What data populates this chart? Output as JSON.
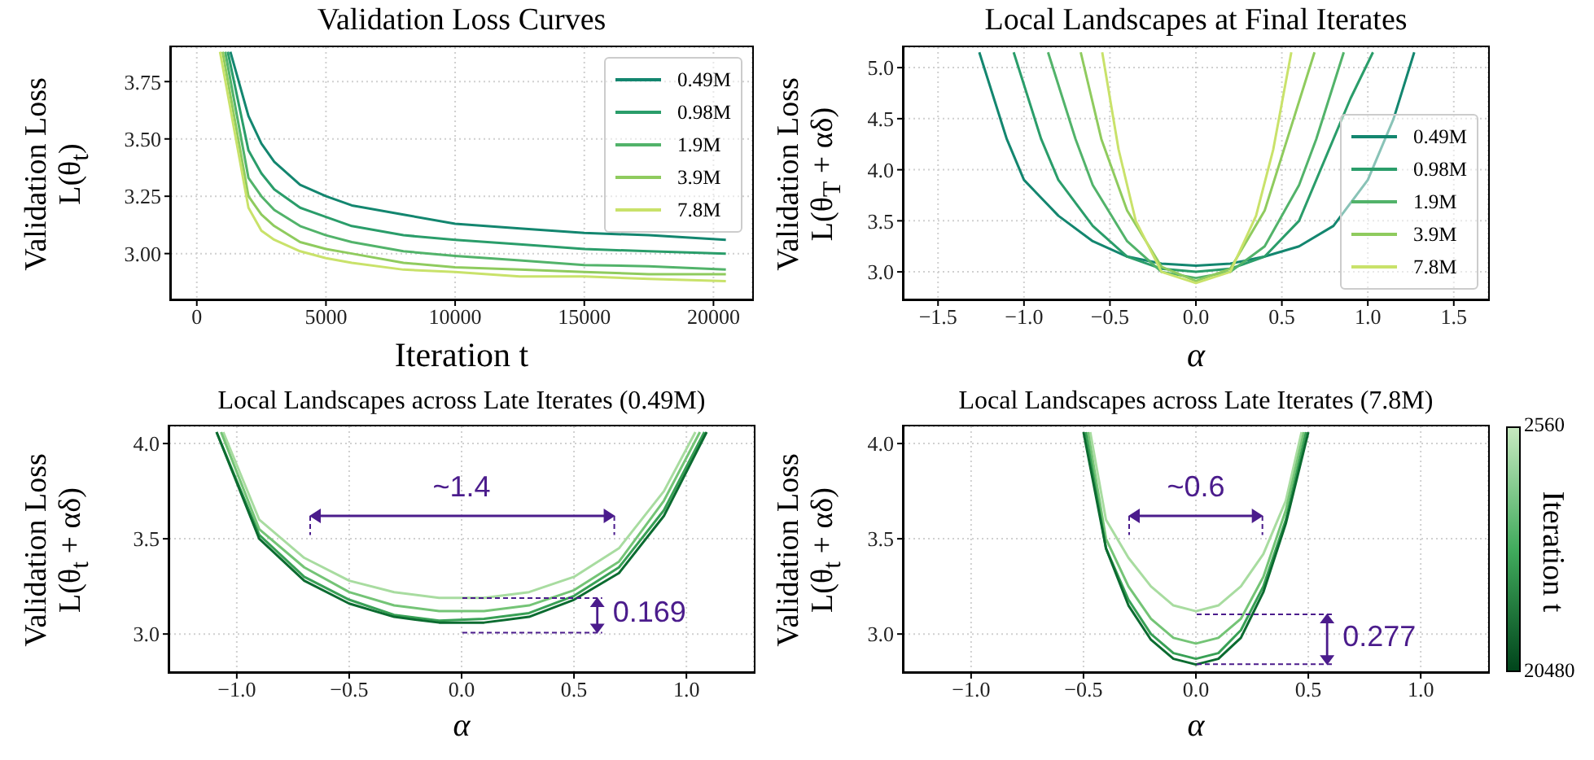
{
  "chart_data": [
    {
      "type": "line",
      "title": "Validation Loss Curves",
      "xlabel": "Iteration t",
      "ylabel": "Validation Loss\nL(θ$_{t}$)",
      "xlim": [
        -1000,
        21500
      ],
      "ylim": [
        2.8,
        3.9
      ],
      "xticks": [
        0,
        5000,
        10000,
        15000,
        20000
      ],
      "yticks": [
        {
          "value": 3,
          "label": "3.00"
        },
        3.25,
        {
          "value": 3.5,
          "label": "3.50"
        },
        3.75
      ],
      "grid": true,
      "legend": "top right",
      "series": [
        {
          "name": "0.49M",
          "color": "#13866f",
          "x": [
            1300,
            2000,
            2500,
            3000,
            4000,
            5000,
            6000,
            8000,
            10000,
            12500,
            15000,
            17500,
            20480
          ],
          "values": [
            3.88,
            3.6,
            3.48,
            3.4,
            3.3,
            3.25,
            3.21,
            3.17,
            3.13,
            3.11,
            3.09,
            3.08,
            3.06
          ]
        },
        {
          "name": "0.98M",
          "color": "#2a9d6a",
          "x": [
            1200,
            2000,
            2500,
            3000,
            4000,
            5000,
            6000,
            8000,
            10000,
            12500,
            15000,
            17500,
            20480
          ],
          "values": [
            3.88,
            3.45,
            3.35,
            3.28,
            3.2,
            3.16,
            3.12,
            3.08,
            3.06,
            3.04,
            3.02,
            3.01,
            3.0
          ]
        },
        {
          "name": "1.9M",
          "color": "#52b36a",
          "x": [
            1100,
            2000,
            2500,
            3000,
            4000,
            5000,
            6000,
            8000,
            10000,
            12500,
            15000,
            17500,
            20480
          ],
          "values": [
            3.88,
            3.33,
            3.25,
            3.19,
            3.12,
            3.08,
            3.05,
            3.01,
            2.99,
            2.97,
            2.95,
            2.945,
            2.93
          ]
        },
        {
          "name": "3.9M",
          "color": "#8fcb5e",
          "x": [
            1000,
            2000,
            2500,
            3000,
            4000,
            5000,
            6000,
            8000,
            10000,
            12500,
            15000,
            17500,
            20480
          ],
          "values": [
            3.88,
            3.25,
            3.17,
            3.12,
            3.05,
            3.02,
            3.0,
            2.96,
            2.94,
            2.93,
            2.92,
            2.91,
            2.91
          ]
        },
        {
          "name": "7.8M",
          "color": "#c9e26a",
          "x": [
            900,
            2000,
            2500,
            3000,
            4000,
            5000,
            6000,
            8000,
            10000,
            12500,
            15000,
            17500,
            20480
          ],
          "values": [
            3.88,
            3.2,
            3.1,
            3.06,
            3.01,
            2.98,
            2.96,
            2.93,
            2.92,
            2.9,
            2.9,
            2.89,
            2.88
          ]
        }
      ]
    },
    {
      "type": "line",
      "title": "Local Landscapes at Final Iterates",
      "xlabel": "α",
      "ylabel": "Validation Loss\nL(θ$_{T}$ + αδ)",
      "xlim": [
        -1.7,
        1.7
      ],
      "ylim": [
        2.73,
        5.2
      ],
      "xticks": [
        {
          "value": -1.5,
          "label": "−1.5"
        },
        {
          "value": -1,
          "label": "−1.0"
        },
        {
          "value": -0.5,
          "label": "−0.5"
        },
        {
          "value": 0,
          "label": "0.0"
        },
        0.5,
        {
          "value": 1,
          "label": "1.0"
        },
        1.5
      ],
      "yticks": [
        {
          "value": 3,
          "label": "3.0"
        },
        3.5,
        {
          "value": 4,
          "label": "4.0"
        },
        4.5,
        {
          "value": 5,
          "label": "5.0"
        }
      ],
      "grid": true,
      "legend": "bottom right",
      "series": [
        {
          "name": "0.49M",
          "color": "#13866f",
          "x": [
            -1.26,
            -1.1,
            -1.0,
            -0.8,
            -0.6,
            -0.4,
            -0.2,
            0,
            0.2,
            0.4,
            0.6,
            0.8,
            1.0,
            1.15,
            1.27
          ],
          "values": [
            5.15,
            4.3,
            3.9,
            3.55,
            3.3,
            3.15,
            3.08,
            3.06,
            3.08,
            3.15,
            3.25,
            3.45,
            3.9,
            4.5,
            5.15
          ]
        },
        {
          "name": "0.98M",
          "color": "#2a9d6a",
          "x": [
            -1.06,
            -0.9,
            -0.8,
            -0.6,
            -0.4,
            -0.2,
            0,
            0.2,
            0.4,
            0.6,
            0.8,
            0.9,
            1.03
          ],
          "values": [
            5.15,
            4.3,
            3.9,
            3.45,
            3.15,
            3.03,
            3.0,
            3.03,
            3.15,
            3.5,
            4.3,
            4.7,
            5.15
          ]
        },
        {
          "name": "1.9M",
          "color": "#52b36a",
          "x": [
            -0.86,
            -0.7,
            -0.6,
            -0.4,
            -0.2,
            0,
            0.2,
            0.4,
            0.6,
            0.7,
            0.86
          ],
          "values": [
            5.15,
            4.3,
            3.85,
            3.3,
            3.0,
            2.94,
            3.0,
            3.25,
            3.85,
            4.3,
            5.15
          ]
        },
        {
          "name": "3.9M",
          "color": "#8fcb5e",
          "x": [
            -0.67,
            -0.55,
            -0.4,
            -0.2,
            0,
            0.2,
            0.4,
            0.55,
            0.69
          ],
          "values": [
            5.15,
            4.3,
            3.6,
            3.05,
            2.91,
            3.03,
            3.6,
            4.4,
            5.15
          ]
        },
        {
          "name": "7.8M",
          "color": "#c9e26a",
          "x": [
            -0.545,
            -0.45,
            -0.35,
            -0.2,
            0,
            0.2,
            0.35,
            0.45,
            0.555
          ],
          "values": [
            5.15,
            4.2,
            3.5,
            3.0,
            2.89,
            3.0,
            3.55,
            4.2,
            5.15
          ]
        }
      ]
    },
    {
      "type": "line",
      "title": "Local Landscapes across Late Iterates (0.49M)",
      "xlabel": "α",
      "ylabel": "Validation Loss\nL(θ$_{t}$ + αδ)",
      "xlim": [
        -1.3,
        1.3
      ],
      "ylim": [
        2.8,
        4.09
      ],
      "xticks": [
        {
          "value": -1,
          "label": "−1.0"
        },
        {
          "value": -0.5,
          "label": "−0.5"
        },
        {
          "value": 0,
          "label": "0.0"
        },
        0.5,
        {
          "value": 1,
          "label": "1.0"
        }
      ],
      "yticks": [
        {
          "value": 3,
          "label": "3.0"
        },
        3.5,
        {
          "value": 4,
          "label": "4.0"
        }
      ],
      "grid": true,
      "annotations": [
        "~1.4",
        {
          "text": "0.169",
          "x": 0,
          "y": 3.19
        }
      ],
      "series": [
        {
          "color": "#a8dca0",
          "x": [
            -1.06,
            -0.9,
            -0.7,
            -0.5,
            -0.3,
            -0.1,
            0.1,
            0.3,
            0.5,
            0.7,
            0.9,
            1.04
          ],
          "values": [
            4.06,
            3.6,
            3.4,
            3.28,
            3.22,
            3.19,
            3.19,
            3.22,
            3.3,
            3.45,
            3.75,
            4.06
          ]
        },
        {
          "color": "#74c476",
          "x": [
            -1.07,
            -0.9,
            -0.7,
            -0.5,
            -0.3,
            -0.1,
            0.1,
            0.3,
            0.5,
            0.7,
            0.9,
            1.06
          ],
          "values": [
            4.06,
            3.55,
            3.35,
            3.22,
            3.15,
            3.12,
            3.12,
            3.15,
            3.23,
            3.38,
            3.7,
            4.06
          ]
        },
        {
          "color": "#38a055",
          "x": [
            -1.09,
            -0.9,
            -0.7,
            -0.5,
            -0.3,
            -0.1,
            0.1,
            0.3,
            0.5,
            0.7,
            0.9,
            1.08
          ],
          "values": [
            4.06,
            3.52,
            3.3,
            3.18,
            3.1,
            3.07,
            3.08,
            3.11,
            3.2,
            3.35,
            3.65,
            4.06
          ]
        },
        {
          "color": "#0b6b30",
          "x": [
            -1.09,
            -0.9,
            -0.7,
            -0.5,
            -0.3,
            -0.1,
            0.1,
            0.3,
            0.5,
            0.7,
            0.9,
            1.09
          ],
          "values": [
            4.06,
            3.5,
            3.28,
            3.16,
            3.09,
            3.06,
            3.06,
            3.09,
            3.18,
            3.32,
            3.62,
            4.06
          ]
        }
      ]
    },
    {
      "type": "line",
      "title": "Local Landscapes across Late Iterates (7.8M)",
      "xlabel": "α",
      "ylabel": "Validation Loss\nL(θ$_{t}$ + αδ)",
      "clabel": "Iteration t",
      "clim": [
        20480,
        2560
      ],
      "cticks": [
        2560,
        20480
      ],
      "xlim": [
        -1.3,
        1.3
      ],
      "ylim": [
        2.8,
        4.09
      ],
      "xticks": [
        {
          "value": -1,
          "label": "−1.0"
        },
        {
          "value": -0.5,
          "label": "−0.5"
        },
        {
          "value": 0,
          "label": "0.0"
        },
        0.5,
        {
          "value": 1,
          "label": "1.0"
        }
      ],
      "yticks": [
        {
          "value": 3,
          "label": "3.0"
        },
        3.5,
        {
          "value": 4,
          "label": "4.0"
        }
      ],
      "grid": true,
      "annotations": [
        "~0.6",
        {
          "text": "0.277",
          "x": 0,
          "y": 2.84
        }
      ],
      "series": [
        {
          "color": "#a8dca0",
          "x": [
            -0.47,
            -0.4,
            -0.3,
            -0.2,
            -0.1,
            0,
            0.1,
            0.2,
            0.3,
            0.4,
            0.47
          ],
          "values": [
            4.06,
            3.6,
            3.4,
            3.25,
            3.15,
            3.12,
            3.15,
            3.25,
            3.42,
            3.7,
            4.06
          ]
        },
        {
          "color": "#74c476",
          "x": [
            -0.48,
            -0.4,
            -0.3,
            -0.2,
            -0.1,
            0,
            0.1,
            0.2,
            0.3,
            0.4,
            0.48
          ],
          "values": [
            4.06,
            3.5,
            3.25,
            3.08,
            2.98,
            2.95,
            2.98,
            3.08,
            3.3,
            3.65,
            4.06
          ]
        },
        {
          "color": "#38a055",
          "x": [
            -0.49,
            -0.4,
            -0.3,
            -0.2,
            -0.1,
            0,
            0.1,
            0.2,
            0.3,
            0.4,
            0.49
          ],
          "values": [
            4.06,
            3.45,
            3.18,
            3.0,
            2.9,
            2.87,
            2.9,
            3.02,
            3.25,
            3.6,
            4.06
          ]
        },
        {
          "color": "#0b6b30",
          "x": [
            -0.5,
            -0.4,
            -0.3,
            -0.2,
            -0.1,
            0,
            0.1,
            0.2,
            0.3,
            0.4,
            0.5
          ],
          "values": [
            4.06,
            3.45,
            3.15,
            2.97,
            2.87,
            2.84,
            2.87,
            2.98,
            3.22,
            3.58,
            4.06
          ]
        }
      ]
    }
  ]
}
